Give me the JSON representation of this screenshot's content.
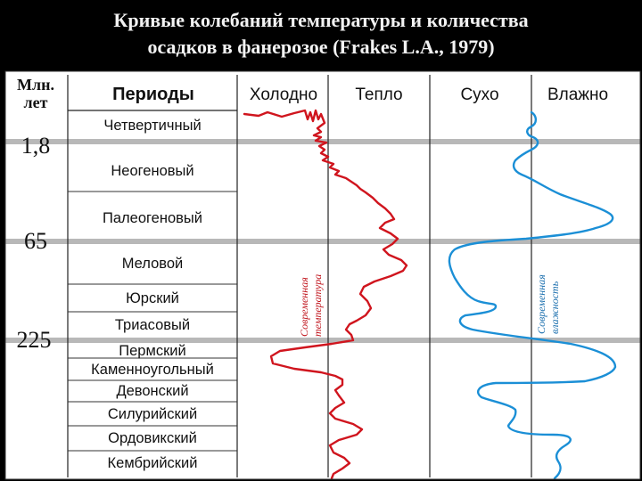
{
  "slide": {
    "title_line1": "Кривые колебаний температуры и количества",
    "title_line2": "осадков в фанерозое (Frakes L.A., 1979)"
  },
  "headers": {
    "age_line1": "Млн.",
    "age_line2": "лет",
    "periods": "Периоды",
    "cold": "Холодно",
    "warm": "Тепло",
    "dry": "Сухо",
    "wet": "Влажно"
  },
  "ages": {
    "a1": "1,8",
    "a2": "65",
    "a3": "225"
  },
  "periods": [
    "Четвертичный",
    "Неогеновый",
    "Палеогеновый",
    "Меловой",
    "Юрский",
    "Триасовый",
    "Пермский",
    "Каменноугольный",
    "Девонский",
    "Силурийский",
    "Ордовикский",
    "Кембрийский"
  ],
  "annotations": {
    "temp_line1": "Современная",
    "temp_line2": "температура",
    "wet_line1": "Современная",
    "wet_line2": "влажность"
  },
  "colors": {
    "temperature_curve": "#d0151e",
    "humidity_curve": "#1b8fd6",
    "separator_band": "#b8b8b8",
    "background": "#ffffff"
  }
}
